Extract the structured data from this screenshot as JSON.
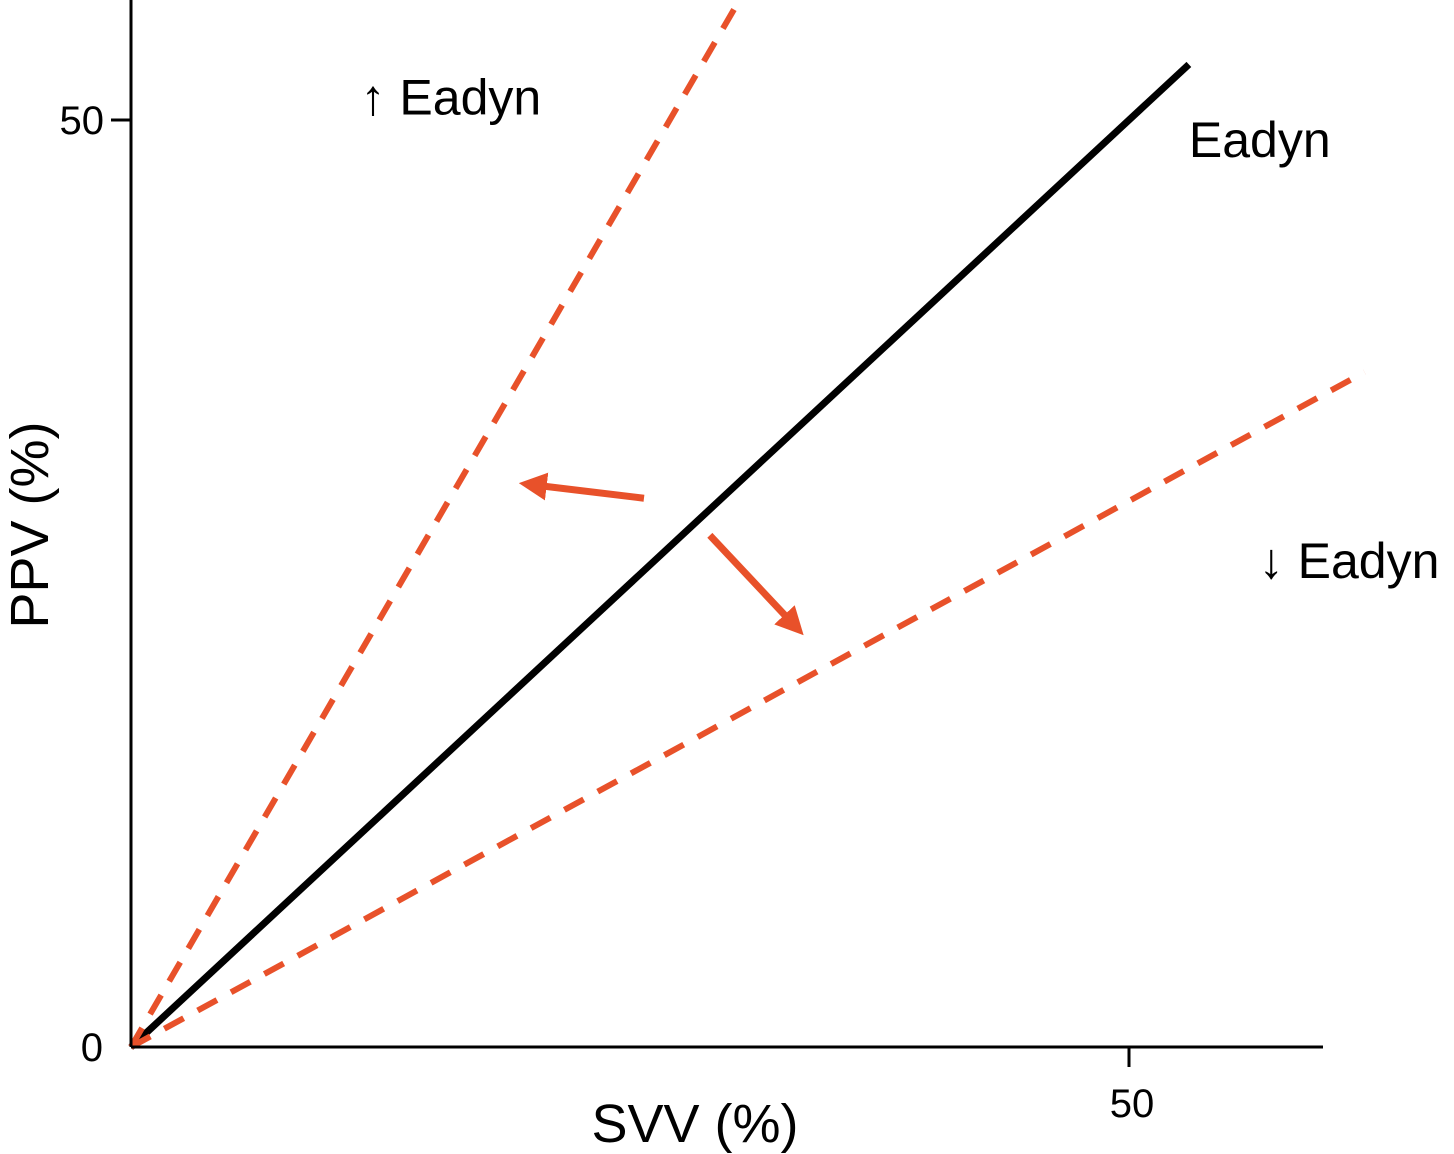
{
  "chart_data": {
    "type": "line",
    "xlabel": "SVV (%)",
    "ylabel": "PPV (%)",
    "x_ticks": [
      "50"
    ],
    "y_ticks": [
      "0",
      "50"
    ],
    "xlim": [
      0,
      60
    ],
    "ylim": [
      0,
      56
    ],
    "grid": false,
    "series": [
      {
        "name": "Eadyn",
        "style": "solid",
        "color": "#000000",
        "x": [
          0,
          53
        ],
        "y": [
          0,
          53
        ]
      },
      {
        "name": "↑ Eadyn",
        "style": "dashed",
        "color": "#e8512a",
        "x": [
          0,
          30.5
        ],
        "y": [
          0,
          56.5
        ]
      },
      {
        "name": "↓ Eadyn",
        "style": "dashed",
        "color": "#e8512a",
        "x": [
          0,
          61.8
        ],
        "y": [
          0,
          36.4
        ]
      }
    ],
    "annotations": [
      {
        "text": "↑ Eadyn",
        "x": 11.5,
        "y": 50.3
      },
      {
        "text": "Eadyn",
        "x": 53,
        "y": 48
      },
      {
        "text": "↓ Eadyn",
        "x": 56.5,
        "y": 25.3
      }
    ],
    "arrows": [
      {
        "color": "#e8512a",
        "from": [
          25.7,
          29.6
        ],
        "to": [
          20.3,
          30.3
        ]
      },
      {
        "color": "#e8512a",
        "from": [
          29,
          27.6
        ],
        "to": [
          33.1,
          22.9
        ]
      }
    ]
  }
}
